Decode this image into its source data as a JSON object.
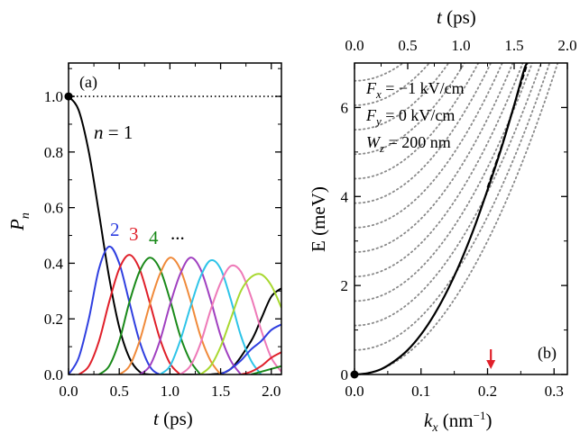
{
  "panel_a": {
    "tag": "(a)",
    "ylabel_main": "P",
    "ylabel_sub": "n",
    "xlabel": "t (ps)",
    "n_label": "n = 1",
    "n_label_n": "n",
    "n_label_rest": " = 1",
    "state_labels": [
      "2",
      "3",
      "4",
      "..."
    ]
  },
  "panel_b": {
    "tag": "(b)",
    "top_xlabel": "t (ps)",
    "bottom_xlabel": "k",
    "bottom_xlabel_sub": "x",
    "bottom_xlabel_rest": " (nm",
    "bottom_xlabel_exp": "−1",
    "bottom_xlabel_close": ")",
    "ylabel": "E (meV)",
    "params": [
      {
        "symbol": "F",
        "sub": "x",
        "value": " = −1 kV/cm"
      },
      {
        "symbol": "F",
        "sub": "y",
        "value": " = 0 kV/cm"
      },
      {
        "symbol": "W",
        "sub": "z",
        "value": " = 200 nm"
      }
    ]
  },
  "chart_data": [
    {
      "type": "line",
      "panel": "(a)",
      "title": "",
      "xlabel": "t (ps)",
      "ylabel": "P_n",
      "xlim": [
        0.0,
        2.1
      ],
      "ylim": [
        0.0,
        1.12
      ],
      "x_ticks": [
        "0.0",
        "0.5",
        "1.0",
        "1.5",
        "2.0"
      ],
      "y_ticks": [
        "0.0",
        "0.2",
        "0.4",
        "0.6",
        "0.8",
        "1.0"
      ],
      "x_tick_values": [
        0.0,
        0.5,
        1.0,
        1.5,
        2.0
      ],
      "y_tick_values": [
        0.0,
        0.2,
        0.4,
        0.6,
        0.8,
        1.0
      ],
      "reference_line": {
        "y": 1.0,
        "style": "dotted"
      },
      "start_marker": {
        "x": 0.0,
        "y": 1.0
      },
      "series": [
        {
          "name": "n=1",
          "color": "#000000",
          "points": [
            [
              0,
              1.0
            ],
            [
              0.1,
              0.95
            ],
            [
              0.2,
              0.8
            ],
            [
              0.3,
              0.58
            ],
            [
              0.4,
              0.35
            ],
            [
              0.5,
              0.17
            ],
            [
              0.6,
              0.06
            ],
            [
              0.7,
              0.01
            ],
            [
              0.8,
              0.0
            ],
            [
              1.0,
              0.0
            ],
            [
              1.2,
              0.0
            ],
            [
              1.4,
              0.0
            ],
            [
              1.6,
              0.02
            ],
            [
              1.8,
              0.12
            ],
            [
              1.9,
              0.2
            ],
            [
              2.0,
              0.28
            ],
            [
              2.1,
              0.31
            ]
          ]
        },
        {
          "name": "n=2",
          "color": "#2f3fe0",
          "points": [
            [
              0,
              0
            ],
            [
              0.1,
              0.06
            ],
            [
              0.2,
              0.2
            ],
            [
              0.3,
              0.38
            ],
            [
              0.4,
              0.46
            ],
            [
              0.5,
              0.4
            ],
            [
              0.6,
              0.26
            ],
            [
              0.7,
              0.12
            ],
            [
              0.8,
              0.03
            ],
            [
              0.9,
              0.0
            ],
            [
              1.0,
              0.0
            ]
          ]
        },
        {
          "name": "n=3",
          "color": "#e0202a",
          "points": [
            [
              0.1,
              0.0
            ],
            [
              0.2,
              0.03
            ],
            [
              0.3,
              0.12
            ],
            [
              0.4,
              0.26
            ],
            [
              0.5,
              0.38
            ],
            [
              0.6,
              0.43
            ],
            [
              0.7,
              0.38
            ],
            [
              0.8,
              0.26
            ],
            [
              0.9,
              0.13
            ],
            [
              1.0,
              0.04
            ],
            [
              1.1,
              0.0
            ]
          ]
        },
        {
          "name": "n=4",
          "color": "#1a8a1a",
          "points": [
            [
              0.3,
              0.0
            ],
            [
              0.4,
              0.03
            ],
            [
              0.5,
              0.12
            ],
            [
              0.6,
              0.26
            ],
            [
              0.7,
              0.37
            ],
            [
              0.8,
              0.42
            ],
            [
              0.9,
              0.38
            ],
            [
              1.0,
              0.27
            ],
            [
              1.1,
              0.14
            ],
            [
              1.2,
              0.05
            ],
            [
              1.3,
              0.0
            ]
          ]
        },
        {
          "name": "n=5",
          "color": "#f08a3a",
          "points": [
            [
              0.5,
              0.0
            ],
            [
              0.6,
              0.03
            ],
            [
              0.7,
              0.12
            ],
            [
              0.8,
              0.25
            ],
            [
              0.9,
              0.36
            ],
            [
              1.0,
              0.42
            ],
            [
              1.1,
              0.38
            ],
            [
              1.2,
              0.27
            ],
            [
              1.3,
              0.14
            ],
            [
              1.4,
              0.05
            ],
            [
              1.5,
              0.0
            ]
          ]
        },
        {
          "name": "n=6",
          "color": "#a040c0",
          "points": [
            [
              0.7,
              0.0
            ],
            [
              0.8,
              0.03
            ],
            [
              0.9,
              0.12
            ],
            [
              1.0,
              0.25
            ],
            [
              1.1,
              0.36
            ],
            [
              1.2,
              0.42
            ],
            [
              1.3,
              0.38
            ],
            [
              1.4,
              0.27
            ],
            [
              1.5,
              0.14
            ],
            [
              1.6,
              0.05
            ],
            [
              1.7,
              0.0
            ]
          ]
        },
        {
          "name": "n=7",
          "color": "#2ec4e8",
          "points": [
            [
              0.9,
              0.0
            ],
            [
              1.0,
              0.03
            ],
            [
              1.1,
              0.12
            ],
            [
              1.2,
              0.24
            ],
            [
              1.3,
              0.35
            ],
            [
              1.4,
              0.41
            ],
            [
              1.5,
              0.38
            ],
            [
              1.6,
              0.27
            ],
            [
              1.7,
              0.14
            ],
            [
              1.8,
              0.05
            ],
            [
              1.9,
              0.0
            ]
          ]
        },
        {
          "name": "n=8",
          "color": "#ee7ab8",
          "points": [
            [
              1.1,
              0.0
            ],
            [
              1.2,
              0.03
            ],
            [
              1.3,
              0.11
            ],
            [
              1.4,
              0.23
            ],
            [
              1.5,
              0.33
            ],
            [
              1.6,
              0.39
            ],
            [
              1.7,
              0.37
            ],
            [
              1.8,
              0.28
            ],
            [
              1.9,
              0.16
            ],
            [
              2.0,
              0.06
            ],
            [
              2.1,
              0.01
            ]
          ]
        },
        {
          "name": "n=9",
          "color": "#a8d830",
          "points": [
            [
              1.3,
              0.0
            ],
            [
              1.4,
              0.03
            ],
            [
              1.5,
              0.1
            ],
            [
              1.6,
              0.2
            ],
            [
              1.7,
              0.3
            ],
            [
              1.8,
              0.35
            ],
            [
              1.9,
              0.36
            ],
            [
              2.0,
              0.32
            ],
            [
              2.1,
              0.24
            ]
          ]
        },
        {
          "name": "n=10",
          "color": "#2f3fe0",
          "points": [
            [
              1.5,
              0.0
            ],
            [
              1.6,
              0.02
            ],
            [
              1.7,
              0.05
            ],
            [
              1.8,
              0.09
            ],
            [
              1.9,
              0.12
            ],
            [
              2.0,
              0.16
            ],
            [
              2.1,
              0.18
            ]
          ]
        },
        {
          "name": "n=11",
          "color": "#e0202a",
          "points": [
            [
              1.7,
              0.0
            ],
            [
              1.8,
              0.01
            ],
            [
              1.9,
              0.03
            ],
            [
              2.0,
              0.06
            ],
            [
              2.1,
              0.08
            ]
          ]
        },
        {
          "name": "n=12",
          "color": "#1a8a1a",
          "points": [
            [
              1.8,
              0.0
            ],
            [
              1.9,
              0.01
            ],
            [
              2.0,
              0.02
            ],
            [
              2.1,
              0.03
            ]
          ]
        }
      ]
    },
    {
      "type": "line",
      "panel": "(b)",
      "title": "",
      "xlabel": "k_x (nm^-1)",
      "ylabel": "E (meV)",
      "top_xlabel": "t (ps)",
      "xlim": [
        0.0,
        0.32
      ],
      "ylim": [
        0.0,
        7.0
      ],
      "x_ticks": [
        "0.0",
        "0.1",
        "0.2",
        "0.3"
      ],
      "x_tick_values": [
        0.0,
        0.1,
        0.2,
        0.3
      ],
      "y_ticks": [
        "0",
        "2",
        "4",
        "6"
      ],
      "y_tick_values": [
        0,
        2,
        4,
        6
      ],
      "top_x_ticks": [
        "0.0",
        "0.5",
        "1.0",
        "1.5",
        "2.0"
      ],
      "top_x_tick_values_in_k": [
        0.0,
        0.08,
        0.16,
        0.24,
        0.32
      ],
      "arrow": {
        "x": 0.205,
        "color": "#e0202a"
      },
      "start_marker": {
        "x": 0.0,
        "y": 0.0
      },
      "main_curve": {
        "name": "E(k_x)",
        "style": "solid",
        "color": "#000000",
        "points": [
          [
            0,
            0
          ],
          [
            0.02,
            0.03
          ],
          [
            0.04,
            0.12
          ],
          [
            0.06,
            0.3
          ],
          [
            0.08,
            0.55
          ],
          [
            0.1,
            0.9
          ],
          [
            0.12,
            1.35
          ],
          [
            0.14,
            1.9
          ],
          [
            0.16,
            2.55
          ],
          [
            0.18,
            3.3
          ],
          [
            0.2,
            4.15
          ],
          [
            0.22,
            5.05
          ],
          [
            0.24,
            6.05
          ],
          [
            0.255,
            6.85
          ],
          [
            0.26,
            7.0
          ]
        ]
      },
      "dashed_curve": {
        "name": "parabola",
        "style": "dashed",
        "color": "#000000",
        "points": [
          [
            0.2,
            4.2
          ],
          [
            0.22,
            5.08
          ],
          [
            0.24,
            6.05
          ],
          [
            0.26,
            7.0
          ]
        ]
      },
      "dotted_curves": {
        "style": "dotted",
        "color": "#8a8a8a",
        "offsets": [
          0.55,
          1.1,
          1.65,
          2.2,
          2.75,
          3.3,
          3.85,
          4.4,
          4.95,
          5.5,
          6.05,
          6.6
        ],
        "curvature": 75
      }
    }
  ]
}
